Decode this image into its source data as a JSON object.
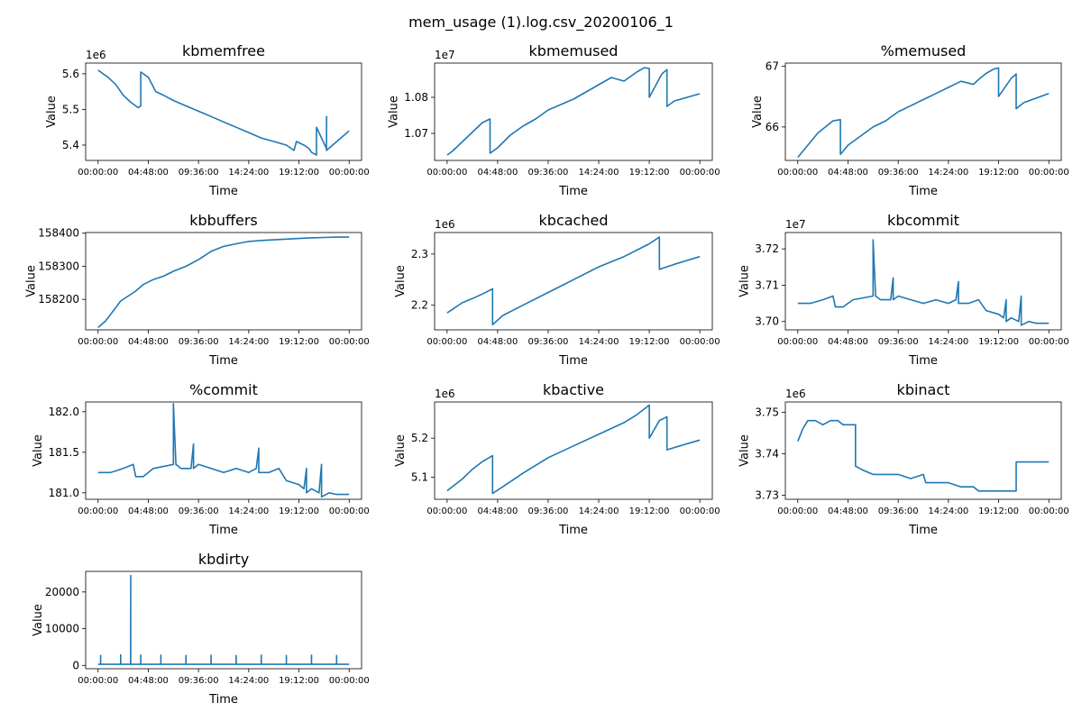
{
  "figure": {
    "title": "mem_usage (1).log.csv_20200106_1"
  },
  "chart_data": [
    {
      "type": "line",
      "title": "kbmemfree",
      "xlabel": "Time",
      "ylabel": "Value",
      "offset_label": "1e6",
      "color": "#1f77b4",
      "x_ticks": [
        "00:00:00",
        "04:48:00",
        "09:36:00",
        "14:24:00",
        "19:12:00",
        "00:00:00"
      ],
      "y_ticks": [
        {
          "value": 5.4,
          "label": "5.4"
        },
        {
          "value": 5.5,
          "label": "5.5"
        },
        {
          "value": 5.6,
          "label": "5.6"
        }
      ],
      "ylim": [
        5.357,
        5.63
      ],
      "x": [
        0.0,
        0.02,
        0.04,
        0.07,
        0.1,
        0.13,
        0.16,
        0.1699,
        0.17,
        0.18,
        0.2,
        0.23,
        0.26,
        0.3,
        0.35,
        0.4,
        0.45,
        0.5,
        0.55,
        0.6,
        0.65,
        0.7,
        0.75,
        0.78,
        0.79,
        0.82,
        0.84,
        0.85,
        0.8699,
        0.87,
        0.9099,
        0.91,
        0.9099,
        1.0
      ],
      "y": [
        5.61,
        5.6,
        5.59,
        5.57,
        5.54,
        5.52,
        5.505,
        5.51,
        5.605,
        5.6,
        5.59,
        5.55,
        5.54,
        5.525,
        5.51,
        5.495,
        5.48,
        5.465,
        5.45,
        5.435,
        5.42,
        5.41,
        5.4,
        5.385,
        5.41,
        5.4,
        5.39,
        5.38,
        5.372,
        5.45,
        5.39,
        5.48,
        5.385,
        5.44
      ]
    },
    {
      "type": "line",
      "title": "kbmemused",
      "xlabel": "Time",
      "ylabel": "Value",
      "offset_label": "1e7",
      "color": "#1f77b4",
      "x_ticks": [
        "00:00:00",
        "04:48:00",
        "09:36:00",
        "14:24:00",
        "19:12:00",
        "00:00:00"
      ],
      "y_ticks": [
        {
          "value": 1.07,
          "label": "1.07"
        },
        {
          "value": 1.08,
          "label": "1.08"
        }
      ],
      "ylim": [
        1.0625,
        1.0895
      ],
      "x": [
        0.0,
        0.02,
        0.05,
        0.08,
        0.11,
        0.14,
        0.1699,
        0.17,
        0.2,
        0.25,
        0.3,
        0.35,
        0.4,
        0.45,
        0.5,
        0.55,
        0.6,
        0.65,
        0.7,
        0.72,
        0.75,
        0.78,
        0.7999,
        0.8,
        0.85,
        0.8699,
        0.87,
        0.9,
        1.0
      ],
      "y": [
        1.064,
        1.065,
        1.067,
        1.069,
        1.071,
        1.073,
        1.074,
        1.0645,
        1.066,
        1.0695,
        1.072,
        1.074,
        1.0765,
        1.078,
        1.0795,
        1.0815,
        1.0835,
        1.0855,
        1.0845,
        1.0855,
        1.087,
        1.0882,
        1.088,
        1.08,
        1.0865,
        1.0877,
        1.0775,
        1.079,
        1.081
      ]
    },
    {
      "type": "line",
      "title": "%memused",
      "xlabel": "Time",
      "ylabel": "Value",
      "offset_label": "",
      "color": "#1f77b4",
      "x_ticks": [
        "00:00:00",
        "04:48:00",
        "09:36:00",
        "14:24:00",
        "19:12:00",
        "00:00:00"
      ],
      "y_ticks": [
        {
          "value": 66,
          "label": "66"
        },
        {
          "value": 67,
          "label": "67"
        }
      ],
      "ylim": [
        65.45,
        67.05
      ],
      "x": [
        0.0,
        0.02,
        0.05,
        0.08,
        0.11,
        0.14,
        0.1699,
        0.17,
        0.2,
        0.25,
        0.3,
        0.35,
        0.4,
        0.45,
        0.5,
        0.55,
        0.6,
        0.65,
        0.7,
        0.72,
        0.75,
        0.78,
        0.7999,
        0.8,
        0.85,
        0.8699,
        0.87,
        0.9,
        1.0
      ],
      "y": [
        65.5,
        65.6,
        65.75,
        65.9,
        66.0,
        66.1,
        66.12,
        65.55,
        65.7,
        65.85,
        66.0,
        66.1,
        66.25,
        66.35,
        66.45,
        66.55,
        66.65,
        66.75,
        66.7,
        66.78,
        66.88,
        66.95,
        66.97,
        66.5,
        66.8,
        66.87,
        66.3,
        66.4,
        66.55
      ]
    },
    {
      "type": "line",
      "title": "kbbuffers",
      "xlabel": "Time",
      "ylabel": "Value",
      "offset_label": "",
      "color": "#1f77b4",
      "x_ticks": [
        "00:00:00",
        "04:48:00",
        "09:36:00",
        "14:24:00",
        "19:12:00",
        "00:00:00"
      ],
      "y_ticks": [
        {
          "value": 158200,
          "label": "158200"
        },
        {
          "value": 158300,
          "label": "158300"
        },
        {
          "value": 158400,
          "label": "158400"
        }
      ],
      "ylim": [
        158108,
        158402
      ],
      "x": [
        0.0,
        0.03,
        0.06,
        0.09,
        0.12,
        0.15,
        0.18,
        0.22,
        0.26,
        0.3,
        0.35,
        0.4,
        0.45,
        0.5,
        0.55,
        0.6,
        0.65,
        0.7,
        0.75,
        0.8,
        0.85,
        0.9,
        0.95,
        1.0
      ],
      "y": [
        158115,
        158135,
        158165,
        158195,
        158210,
        158225,
        158245,
        158260,
        158270,
        158285,
        158300,
        158320,
        158345,
        158360,
        158368,
        158375,
        158378,
        158380,
        158382,
        158384,
        158386,
        158387,
        158388,
        158388
      ]
    },
    {
      "type": "line",
      "title": "kbcached",
      "xlabel": "Time",
      "ylabel": "Value",
      "offset_label": "1e6",
      "color": "#1f77b4",
      "x_ticks": [
        "00:00:00",
        "04:48:00",
        "09:36:00",
        "14:24:00",
        "19:12:00",
        "00:00:00"
      ],
      "y_ticks": [
        {
          "value": 2.2,
          "label": "2.2"
        },
        {
          "value": 2.3,
          "label": "2.3"
        }
      ],
      "ylim": [
        2.152,
        2.342
      ],
      "x": [
        0.0,
        0.03,
        0.06,
        0.1,
        0.14,
        0.1799,
        0.18,
        0.22,
        0.3,
        0.4,
        0.5,
        0.6,
        0.7,
        0.8,
        0.8399,
        0.84,
        0.9,
        1.0
      ],
      "y": [
        2.185,
        2.195,
        2.205,
        2.213,
        2.222,
        2.232,
        2.162,
        2.18,
        2.2,
        2.225,
        2.25,
        2.275,
        2.295,
        2.32,
        2.333,
        2.27,
        2.28,
        2.295
      ]
    },
    {
      "type": "line",
      "title": "kbcommit",
      "xlabel": "Time",
      "ylabel": "Value",
      "offset_label": "1e7",
      "color": "#1f77b4",
      "x_ticks": [
        "00:00:00",
        "04:48:00",
        "09:36:00",
        "14:24:00",
        "19:12:00",
        "00:00:00"
      ],
      "y_ticks": [
        {
          "value": 3.7,
          "label": "3.70"
        },
        {
          "value": 3.71,
          "label": "3.71"
        },
        {
          "value": 3.72,
          "label": "3.72"
        }
      ],
      "ylim": [
        3.6977,
        3.7245
      ],
      "x": [
        0.0,
        0.05,
        0.1,
        0.14,
        0.15,
        0.18,
        0.22,
        0.2999,
        0.3,
        0.3099,
        0.33,
        0.37,
        0.3799,
        0.3801,
        0.4,
        0.45,
        0.5,
        0.55,
        0.6,
        0.63,
        0.6399,
        0.6401,
        0.68,
        0.72,
        0.75,
        0.8,
        0.82,
        0.8299,
        0.8301,
        0.85,
        0.88,
        0.8899,
        0.8901,
        0.92,
        0.95,
        1.0
      ],
      "y": [
        3.705,
        3.705,
        3.706,
        3.707,
        3.704,
        3.704,
        3.706,
        3.707,
        3.7225,
        3.707,
        3.706,
        3.706,
        3.712,
        3.706,
        3.707,
        3.706,
        3.705,
        3.706,
        3.705,
        3.706,
        3.711,
        3.705,
        3.705,
        3.706,
        3.703,
        3.702,
        3.701,
        3.706,
        3.7,
        3.701,
        3.7,
        3.707,
        3.699,
        3.7,
        3.6995,
        3.6995
      ]
    },
    {
      "type": "line",
      "title": "%commit",
      "xlabel": "Time",
      "ylabel": "Value",
      "offset_label": "",
      "color": "#1f77b4",
      "x_ticks": [
        "00:00:00",
        "04:48:00",
        "09:36:00",
        "14:24:00",
        "19:12:00",
        "00:00:00"
      ],
      "y_ticks": [
        {
          "value": 181.0,
          "label": "181.0"
        },
        {
          "value": 181.5,
          "label": "181.5"
        },
        {
          "value": 182.0,
          "label": "182.0"
        }
      ],
      "ylim": [
        180.92,
        182.12
      ],
      "x": [
        0.0,
        0.05,
        0.1,
        0.14,
        0.15,
        0.18,
        0.22,
        0.2999,
        0.3,
        0.3099,
        0.33,
        0.37,
        0.3799,
        0.3801,
        0.4,
        0.45,
        0.5,
        0.55,
        0.6,
        0.63,
        0.6399,
        0.6401,
        0.68,
        0.72,
        0.75,
        0.8,
        0.82,
        0.8299,
        0.8301,
        0.85,
        0.88,
        0.8899,
        0.8901,
        0.92,
        0.95,
        1.0
      ],
      "y": [
        181.25,
        181.25,
        181.3,
        181.35,
        181.2,
        181.2,
        181.3,
        181.35,
        182.1,
        181.35,
        181.3,
        181.3,
        181.6,
        181.3,
        181.35,
        181.3,
        181.25,
        181.3,
        181.25,
        181.3,
        181.55,
        181.25,
        181.25,
        181.3,
        181.15,
        181.1,
        181.05,
        181.3,
        181.0,
        181.05,
        181.0,
        181.35,
        180.95,
        181.0,
        180.98,
        180.98
      ]
    },
    {
      "type": "line",
      "title": "kbactive",
      "xlabel": "Time",
      "ylabel": "Value",
      "offset_label": "1e6",
      "color": "#1f77b4",
      "x_ticks": [
        "00:00:00",
        "04:48:00",
        "09:36:00",
        "14:24:00",
        "19:12:00",
        "00:00:00"
      ],
      "y_ticks": [
        {
          "value": 5.1,
          "label": "5.1"
        },
        {
          "value": 5.2,
          "label": "5.2"
        }
      ],
      "ylim": [
        5.043,
        5.293
      ],
      "x": [
        0.0,
        0.03,
        0.06,
        0.1,
        0.14,
        0.1799,
        0.18,
        0.22,
        0.3,
        0.4,
        0.5,
        0.6,
        0.7,
        0.75,
        0.7999,
        0.8,
        0.84,
        0.8699,
        0.87,
        0.92,
        1.0
      ],
      "y": [
        5.065,
        5.08,
        5.095,
        5.12,
        5.14,
        5.155,
        5.058,
        5.075,
        5.11,
        5.15,
        5.18,
        5.21,
        5.24,
        5.26,
        5.285,
        5.2,
        5.245,
        5.255,
        5.17,
        5.18,
        5.195
      ]
    },
    {
      "type": "line",
      "title": "kbinact",
      "xlabel": "Time",
      "ylabel": "Value",
      "offset_label": "1e6",
      "color": "#1f77b4",
      "x_ticks": [
        "00:00:00",
        "04:48:00",
        "09:36:00",
        "14:24:00",
        "19:12:00",
        "00:00:00"
      ],
      "y_ticks": [
        {
          "value": 3.73,
          "label": "3.73"
        },
        {
          "value": 3.74,
          "label": "3.74"
        },
        {
          "value": 3.75,
          "label": "3.75"
        }
      ],
      "ylim": [
        3.729,
        3.7525
      ],
      "x": [
        0.0,
        0.02,
        0.04,
        0.07,
        0.1,
        0.13,
        0.16,
        0.18,
        0.2299,
        0.23,
        0.26,
        0.3,
        0.35,
        0.4,
        0.45,
        0.5,
        0.51,
        0.55,
        0.6,
        0.65,
        0.7,
        0.72,
        0.8,
        0.8699,
        0.87,
        0.92,
        1.0
      ],
      "y": [
        3.743,
        3.746,
        3.748,
        3.748,
        3.747,
        3.748,
        3.748,
        3.747,
        3.747,
        3.737,
        3.736,
        3.735,
        3.735,
        3.735,
        3.734,
        3.735,
        3.733,
        3.733,
        3.733,
        3.732,
        3.732,
        3.731,
        3.731,
        3.731,
        3.738,
        3.738,
        3.738
      ]
    },
    {
      "type": "line",
      "title": "kbdirty",
      "xlabel": "Time",
      "ylabel": "Value",
      "offset_label": "",
      "color": "#1f77b4",
      "x_ticks": [
        "00:00:00",
        "04:48:00",
        "09:36:00",
        "14:24:00",
        "19:12:00",
        "00:00:00"
      ],
      "y_ticks": [
        {
          "value": 0,
          "label": "0"
        },
        {
          "value": 10000,
          "label": "10000"
        },
        {
          "value": 20000,
          "label": "20000"
        }
      ],
      "ylim": [
        -900,
        25600
      ],
      "x": [
        0.0,
        0.0099,
        0.01,
        0.0101,
        0.08,
        0.0899,
        0.09,
        0.0901,
        0.1299,
        0.13,
        0.1301,
        0.1699,
        0.17,
        0.1701,
        0.2499,
        0.25,
        0.2501,
        0.3499,
        0.35,
        0.3501,
        0.4499,
        0.45,
        0.4501,
        0.5499,
        0.55,
        0.5501,
        0.6499,
        0.65,
        0.6501,
        0.7499,
        0.75,
        0.7501,
        0.8499,
        0.85,
        0.8501,
        0.9499,
        0.95,
        0.9501,
        1.0
      ],
      "y": [
        300,
        300,
        2700,
        300,
        300,
        300,
        2900,
        300,
        300,
        24500,
        300,
        300,
        2800,
        300,
        300,
        2800,
        300,
        300,
        2700,
        300,
        300,
        2800,
        300,
        300,
        2700,
        300,
        300,
        2800,
        300,
        300,
        2700,
        300,
        300,
        2800,
        300,
        300,
        2700,
        300,
        300
      ]
    }
  ]
}
